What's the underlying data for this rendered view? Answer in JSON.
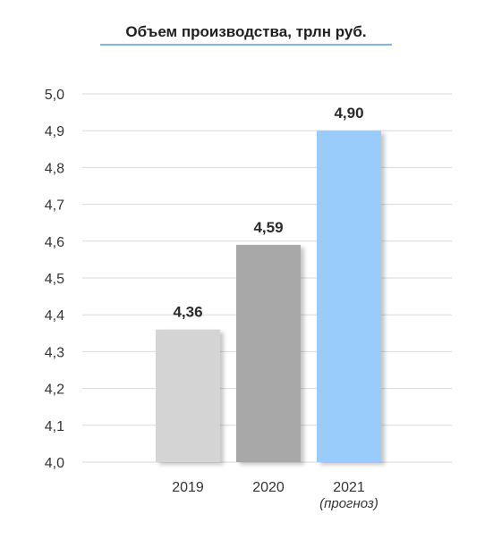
{
  "chart_data": {
    "type": "bar",
    "title": "Объем производства, трлн руб.",
    "categories": [
      "2019",
      "2020",
      "2021"
    ],
    "category_notes": [
      "",
      "",
      "(прогноз)"
    ],
    "values": [
      4.36,
      4.59,
      4.9
    ],
    "value_labels": [
      "4,36",
      "4,59",
      "4,90"
    ],
    "ylim": [
      4.0,
      5.0
    ],
    "yticks": [
      "4,0",
      "4,1",
      "4,2",
      "4,3",
      "4,4",
      "4,5",
      "4,6",
      "4,7",
      "4,8",
      "4,9",
      "5,0"
    ],
    "bar_colors": [
      "#d4d4d4",
      "#a8a8a8",
      "#99ccfb"
    ],
    "title_underline_color": "#7db6e8",
    "grid": true,
    "legend": "none",
    "xlabel": "",
    "ylabel": ""
  }
}
